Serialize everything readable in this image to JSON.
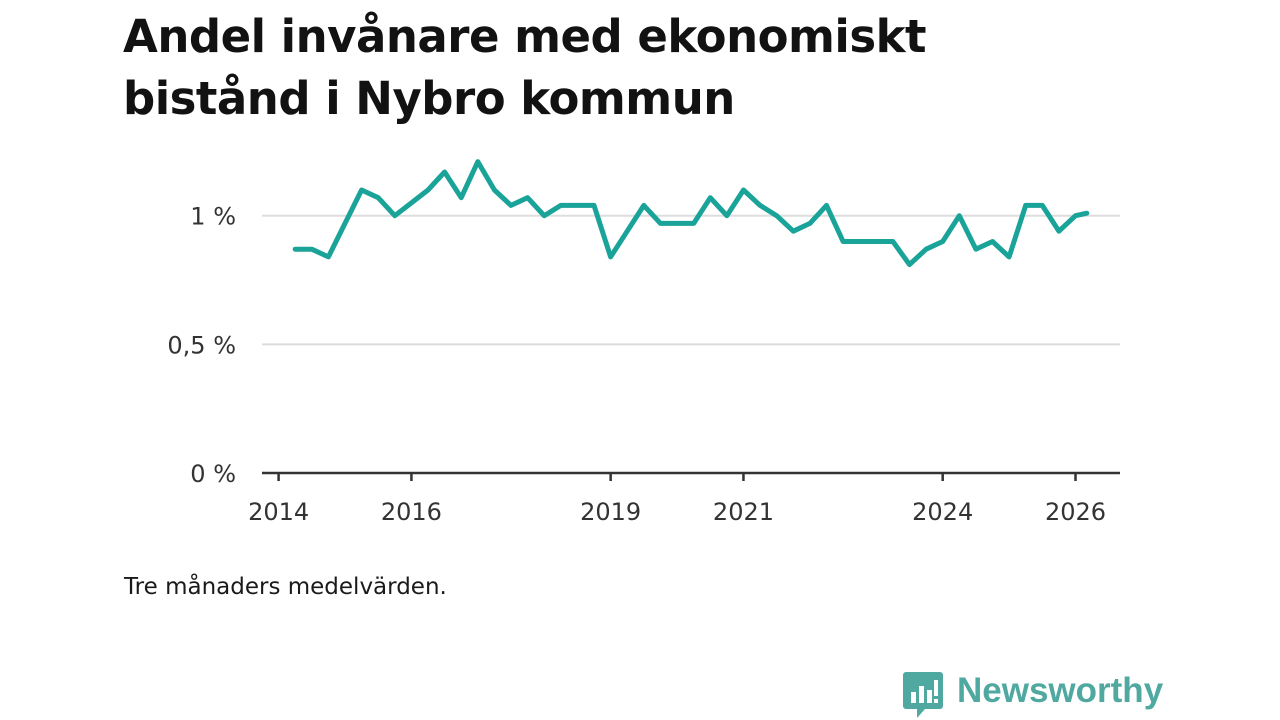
{
  "title": "Andel invånare med ekonomiskt bistånd i Nybro kommun",
  "note": "Tre månaders medelvärden.",
  "brand": {
    "name": "Newsworthy",
    "icon": "newsworthy-logo-icon",
    "color": "#4fa9a0"
  },
  "colors": {
    "line": "#1aa398",
    "grid": "#dddddd",
    "axis": "#333333"
  },
  "chart_data": {
    "type": "line",
    "title": "Andel invånare med ekonomiskt bistånd i Nybro kommun",
    "xlabel": "",
    "ylabel": "",
    "xlim": [
      2013.75,
      2026.67
    ],
    "ylim": [
      0,
      1.1
    ],
    "yticks": [
      {
        "value": 0,
        "label": "0 %"
      },
      {
        "value": 0.5,
        "label": "0,5 %"
      },
      {
        "value": 1,
        "label": "1 %"
      }
    ],
    "xticks": [
      {
        "value": 2014,
        "label": "2014"
      },
      {
        "value": 2016,
        "label": "2016"
      },
      {
        "value": 2019,
        "label": "2019"
      },
      {
        "value": 2021,
        "label": "2021"
      },
      {
        "value": 2024,
        "label": "2024"
      },
      {
        "value": 2026,
        "label": "2026"
      }
    ],
    "grid": true,
    "series": [
      {
        "name": "Andel invånare med ekonomiskt bistånd",
        "x": [
          2014.25,
          2014.5,
          2014.75,
          2015.0,
          2015.25,
          2015.5,
          2015.75,
          2016.0,
          2016.25,
          2016.5,
          2016.75,
          2017.0,
          2017.25,
          2017.5,
          2017.75,
          2018.0,
          2018.25,
          2018.5,
          2018.75,
          2019.0,
          2019.25,
          2019.5,
          2019.75,
          2020.0,
          2020.25,
          2020.5,
          2020.75,
          2021.0,
          2021.25,
          2021.5,
          2021.75,
          2022.0,
          2022.25,
          2022.5,
          2022.75,
          2023.0,
          2023.25,
          2023.5,
          2023.75,
          2024.0,
          2024.25,
          2024.5,
          2024.75,
          2025.0,
          2025.25,
          2025.5,
          2025.75,
          2026.0,
          2026.17
        ],
        "values": [
          0.87,
          0.87,
          0.84,
          0.97,
          1.1,
          1.07,
          1.0,
          1.05,
          1.1,
          1.17,
          1.07,
          1.21,
          1.1,
          1.04,
          1.07,
          1.0,
          1.04,
          1.04,
          1.04,
          0.84,
          0.94,
          1.04,
          0.97,
          0.97,
          0.97,
          1.07,
          1.0,
          1.1,
          1.04,
          1.0,
          0.94,
          0.97,
          1.04,
          0.9,
          0.9,
          0.9,
          0.9,
          0.81,
          0.87,
          0.9,
          1.0,
          0.87,
          0.9,
          0.84,
          1.04,
          1.04,
          0.94,
          1.0,
          1.01
        ]
      }
    ]
  }
}
